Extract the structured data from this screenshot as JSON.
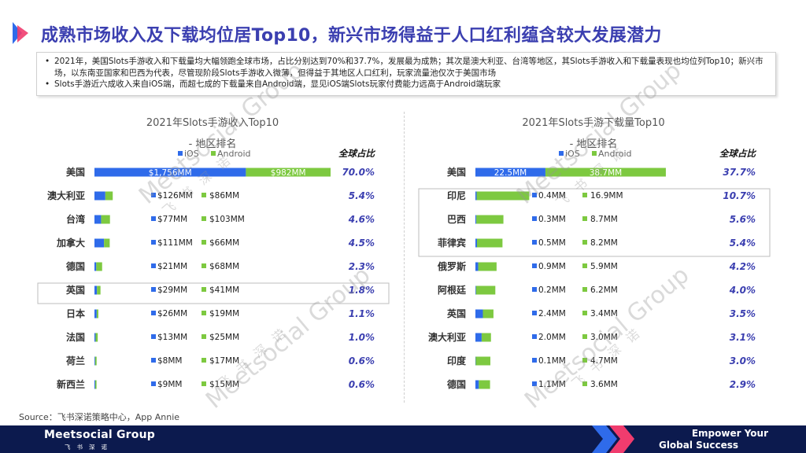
{
  "title": "成熟市场收入及下载均位居Top10，新兴市场得益于人口红利蕴含较大发展潜力",
  "summary": [
    "2021年，美国Slots手游收入和下载量均大幅领跑全球市场，占比分别达到70%和37.7%，发展最为成熟；其次是澳大利亚、台湾等地区，其Slots手游收入和下载量表现也均位列Top10；新兴市场，以东南亚国家和巴西为代表，尽管现阶段Slots手游收入微薄，但得益于其地区人口红利，玩家流量池仅次于美国市场",
    "Slots手游近六成收入来自iOS端，而超七成的下载量来自Android端，显见iOS端Slots玩家付费能力远高于Android端玩家"
  ],
  "source": "Source：飞书深诺策略中心，App Annie",
  "watermark": {
    "text": "Meetsocial Group",
    "cn": "飞书深诺"
  },
  "footer": {
    "brand": "Meetsocial Group",
    "brand_sub": "飞书深诺",
    "slogan_line1": "Empower Your",
    "slogan_line2": "Global Success"
  },
  "colors": {
    "ios": "#2f6bea",
    "android": "#7dc940",
    "title": "#3b3fb0",
    "share": "#3b3fb0",
    "footer": "#0c1a4e"
  },
  "chart_data": [
    {
      "type": "bar",
      "title": "2021年Slots手游收入Top10",
      "subtitle": "- 地区排名",
      "share_header": "全球占比",
      "legend": [
        "iOS",
        "Android"
      ],
      "unit": "MM",
      "categories": [
        "美国",
        "澳大利亚",
        "台湾",
        "加拿大",
        "德国",
        "英国",
        "日本",
        "法国",
        "荷兰",
        "新西兰"
      ],
      "series": [
        {
          "name": "iOS",
          "values": [
            1756,
            126,
            77,
            111,
            21,
            29,
            26,
            13,
            8,
            9
          ],
          "labels": [
            "$1,756MM",
            "$126MM",
            "$77MM",
            "$111MM",
            "$21MM",
            "$29MM",
            "$26MM",
            "$13MM",
            "$8MM",
            "$9MM"
          ]
        },
        {
          "name": "Android",
          "values": [
            982,
            86,
            103,
            66,
            68,
            41,
            19,
            25,
            17,
            15
          ],
          "labels": [
            "$982MM",
            "$86MM",
            "$103MM",
            "$66MM",
            "$68MM",
            "$41MM",
            "$19MM",
            "$25MM",
            "$17MM",
            "$15MM"
          ]
        }
      ],
      "share": [
        "70.0%",
        "5.4%",
        "4.6%",
        "4.5%",
        "2.3%",
        "1.8%",
        "1.1%",
        "1.0%",
        "0.6%",
        "0.6%"
      ],
      "highlighted": [
        "英国"
      ]
    },
    {
      "type": "bar",
      "title": "2021年Slots手游下载量Top10",
      "subtitle": "- 地区排名",
      "share_header": "全球占比",
      "legend": [
        "iOS",
        "Android"
      ],
      "unit": "M",
      "categories": [
        "美国",
        "印尼",
        "巴西",
        "菲律宾",
        "俄罗斯",
        "阿根廷",
        "英国",
        "澳大利亚",
        "印度",
        "德国"
      ],
      "series": [
        {
          "name": "iOS",
          "values": [
            22.5,
            0.4,
            0.3,
            0.5,
            0.9,
            0.2,
            2.4,
            2.0,
            0.1,
            1.1
          ],
          "labels": [
            "22.5MM",
            "0.4MM",
            "0.3MM",
            "0.5MM",
            "0.9MM",
            "0.2MM",
            "2.4MM",
            "2.0MM",
            "0.1MM",
            "1.1MM"
          ]
        },
        {
          "name": "Android",
          "values": [
            38.7,
            16.9,
            8.7,
            8.2,
            5.9,
            6.2,
            3.4,
            3.0,
            4.7,
            3.6
          ],
          "labels": [
            "38.7MM",
            "16.9MM",
            "8.7MM",
            "8.2MM",
            "5.9MM",
            "6.2MM",
            "3.4MM",
            "3.0MM",
            "4.7MM",
            "3.6MM"
          ]
        }
      ],
      "share": [
        "37.7%",
        "10.7%",
        "5.6%",
        "5.4%",
        "4.2%",
        "4.0%",
        "3.5%",
        "3.1%",
        "3.0%",
        "2.9%"
      ],
      "highlighted": [
        "印尼",
        "巴西",
        "菲律宾"
      ]
    }
  ]
}
